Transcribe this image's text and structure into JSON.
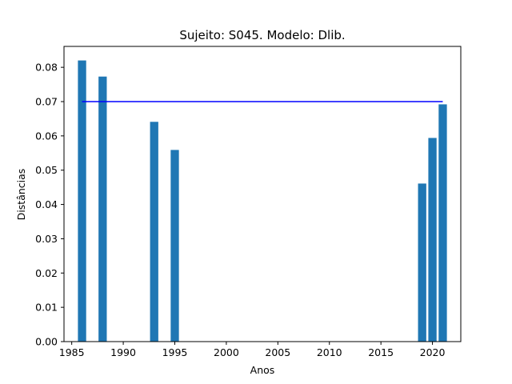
{
  "chart_data": {
    "type": "bar",
    "title": "Sujeito: S045. Modelo: Dlib.",
    "xlabel": "Anos",
    "ylabel": "Distâncias",
    "x": [
      1986,
      1988,
      1993,
      1995,
      2019,
      2020,
      2021
    ],
    "values": [
      0.082,
      0.0773,
      0.0641,
      0.0559,
      0.0461,
      0.0594,
      0.0692
    ],
    "bar_color": "#1f77b4",
    "threshold": {
      "value": 0.07,
      "x_start": 1986,
      "x_end": 2021,
      "color": "#0000ff"
    },
    "xlim": [
      1984.25,
      2022.75
    ],
    "ylim": [
      0,
      0.0861
    ],
    "xticks": [
      1985,
      1990,
      1995,
      2000,
      2005,
      2010,
      2015,
      2020
    ],
    "xtick_labels": [
      "1985",
      "1990",
      "1995",
      "2000",
      "2005",
      "2010",
      "2015",
      "2020"
    ],
    "yticks": [
      0,
      0.01,
      0.02,
      0.03,
      0.04,
      0.05,
      0.06,
      0.07,
      0.08
    ],
    "ytick_labels": [
      "0.00",
      "0.01",
      "0.02",
      "0.03",
      "0.04",
      "0.05",
      "0.06",
      "0.07",
      "0.08"
    ],
    "grid": false,
    "legend": "none"
  }
}
